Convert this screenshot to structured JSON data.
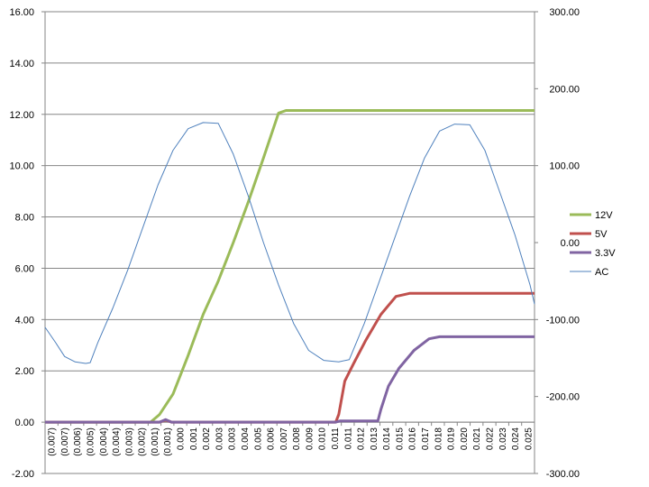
{
  "chart_data": {
    "type": "line",
    "grid": true,
    "legend_position": "right",
    "y_left": {
      "range": [
        -2,
        16
      ],
      "ticks": [
        "-2.00",
        "0.00",
        "2.00",
        "4.00",
        "6.00",
        "8.00",
        "10.00",
        "12.00",
        "14.00",
        "16.00"
      ]
    },
    "y_right": {
      "range": [
        -300,
        300
      ],
      "ticks": [
        "-300.00",
        "-200.00",
        "-100.00",
        "0.00",
        "100.00",
        "200.00",
        "300.00"
      ]
    },
    "x": {
      "range": [
        -0.007,
        0.0255
      ],
      "tick_labels": [
        "(0.007)",
        "(0.007)",
        "(0.006)",
        "(0.005)",
        "(0.004)",
        "(0.004)",
        "(0.003)",
        "(0.002)",
        "(0.001)",
        "(0.001)",
        "0.000",
        "0.001",
        "0.002",
        "0.003",
        "0.003",
        "0.004",
        "0.005",
        "0.006",
        "0.007",
        "0.008",
        "0.009",
        "0.010",
        "0.011",
        "0.011",
        "0.012",
        "0.013",
        "0.014",
        "0.015",
        "0.016",
        "0.017",
        "0.018",
        "0.019",
        "0.020",
        "0.021",
        "0.022",
        "0.023",
        "0.024",
        "0.025"
      ]
    },
    "series": [
      {
        "name": "12V",
        "axis": "left",
        "color": "#9BBB59",
        "points": [
          [
            -0.007,
            0
          ],
          [
            0.0,
            0
          ],
          [
            0.0006,
            0.3
          ],
          [
            0.0015,
            1.1
          ],
          [
            0.0025,
            2.6
          ],
          [
            0.0035,
            4.2
          ],
          [
            0.0045,
            5.5
          ],
          [
            0.0055,
            7.0
          ],
          [
            0.0065,
            8.6
          ],
          [
            0.0075,
            10.3
          ],
          [
            0.0085,
            12.05
          ],
          [
            0.009,
            12.15
          ],
          [
            0.0255,
            12.15
          ]
        ]
      },
      {
        "name": "5V",
        "axis": "left",
        "color": "#C0504D",
        "points": [
          [
            -0.007,
            0
          ],
          [
            0.0006,
            0
          ],
          [
            0.001,
            0.08
          ],
          [
            0.0014,
            0
          ],
          [
            0.0123,
            0
          ],
          [
            0.0125,
            0.3
          ],
          [
            0.0129,
            1.6
          ],
          [
            0.0135,
            2.3
          ],
          [
            0.0143,
            3.2
          ],
          [
            0.0153,
            4.2
          ],
          [
            0.0163,
            4.9
          ],
          [
            0.0172,
            5.02
          ],
          [
            0.0255,
            5.02
          ]
        ]
      },
      {
        "name": "3.3V",
        "axis": "left",
        "color": "#8064A2",
        "points": [
          [
            -0.007,
            0
          ],
          [
            0.0006,
            0
          ],
          [
            0.001,
            0.1
          ],
          [
            0.0014,
            0
          ],
          [
            0.0123,
            0
          ],
          [
            0.0126,
            0.05
          ],
          [
            0.0151,
            0.05
          ],
          [
            0.0153,
            0.5
          ],
          [
            0.0158,
            1.4
          ],
          [
            0.0165,
            2.1
          ],
          [
            0.0175,
            2.8
          ],
          [
            0.0185,
            3.25
          ],
          [
            0.0192,
            3.33
          ],
          [
            0.0255,
            3.33
          ]
        ]
      },
      {
        "name": "AC",
        "axis": "right",
        "color": "#4F81BD",
        "points": [
          [
            -0.007,
            -110
          ],
          [
            -0.0063,
            -130
          ],
          [
            -0.0057,
            -148
          ],
          [
            -0.005,
            -155
          ],
          [
            -0.0043,
            -157
          ],
          [
            -0.004,
            -156
          ],
          [
            -0.0035,
            -130
          ],
          [
            -0.0025,
            -85
          ],
          [
            -0.0015,
            -35
          ],
          [
            -0.0005,
            20
          ],
          [
            0.0005,
            75
          ],
          [
            0.0015,
            120
          ],
          [
            0.0025,
            148
          ],
          [
            0.0035,
            156
          ],
          [
            0.0045,
            155
          ],
          [
            0.0055,
            115
          ],
          [
            0.0065,
            60
          ],
          [
            0.0075,
            0
          ],
          [
            0.0085,
            -55
          ],
          [
            0.0095,
            -105
          ],
          [
            0.0105,
            -140
          ],
          [
            0.0115,
            -153
          ],
          [
            0.0125,
            -155
          ],
          [
            0.0132,
            -152
          ],
          [
            0.0142,
            -105
          ],
          [
            0.0152,
            -50
          ],
          [
            0.0162,
            5
          ],
          [
            0.0172,
            60
          ],
          [
            0.0182,
            110
          ],
          [
            0.0192,
            145
          ],
          [
            0.0202,
            154
          ],
          [
            0.0212,
            153
          ],
          [
            0.0222,
            120
          ],
          [
            0.0232,
            65
          ],
          [
            0.0242,
            10
          ],
          [
            0.0252,
            -55
          ],
          [
            0.0255,
            -80
          ]
        ]
      }
    ]
  }
}
